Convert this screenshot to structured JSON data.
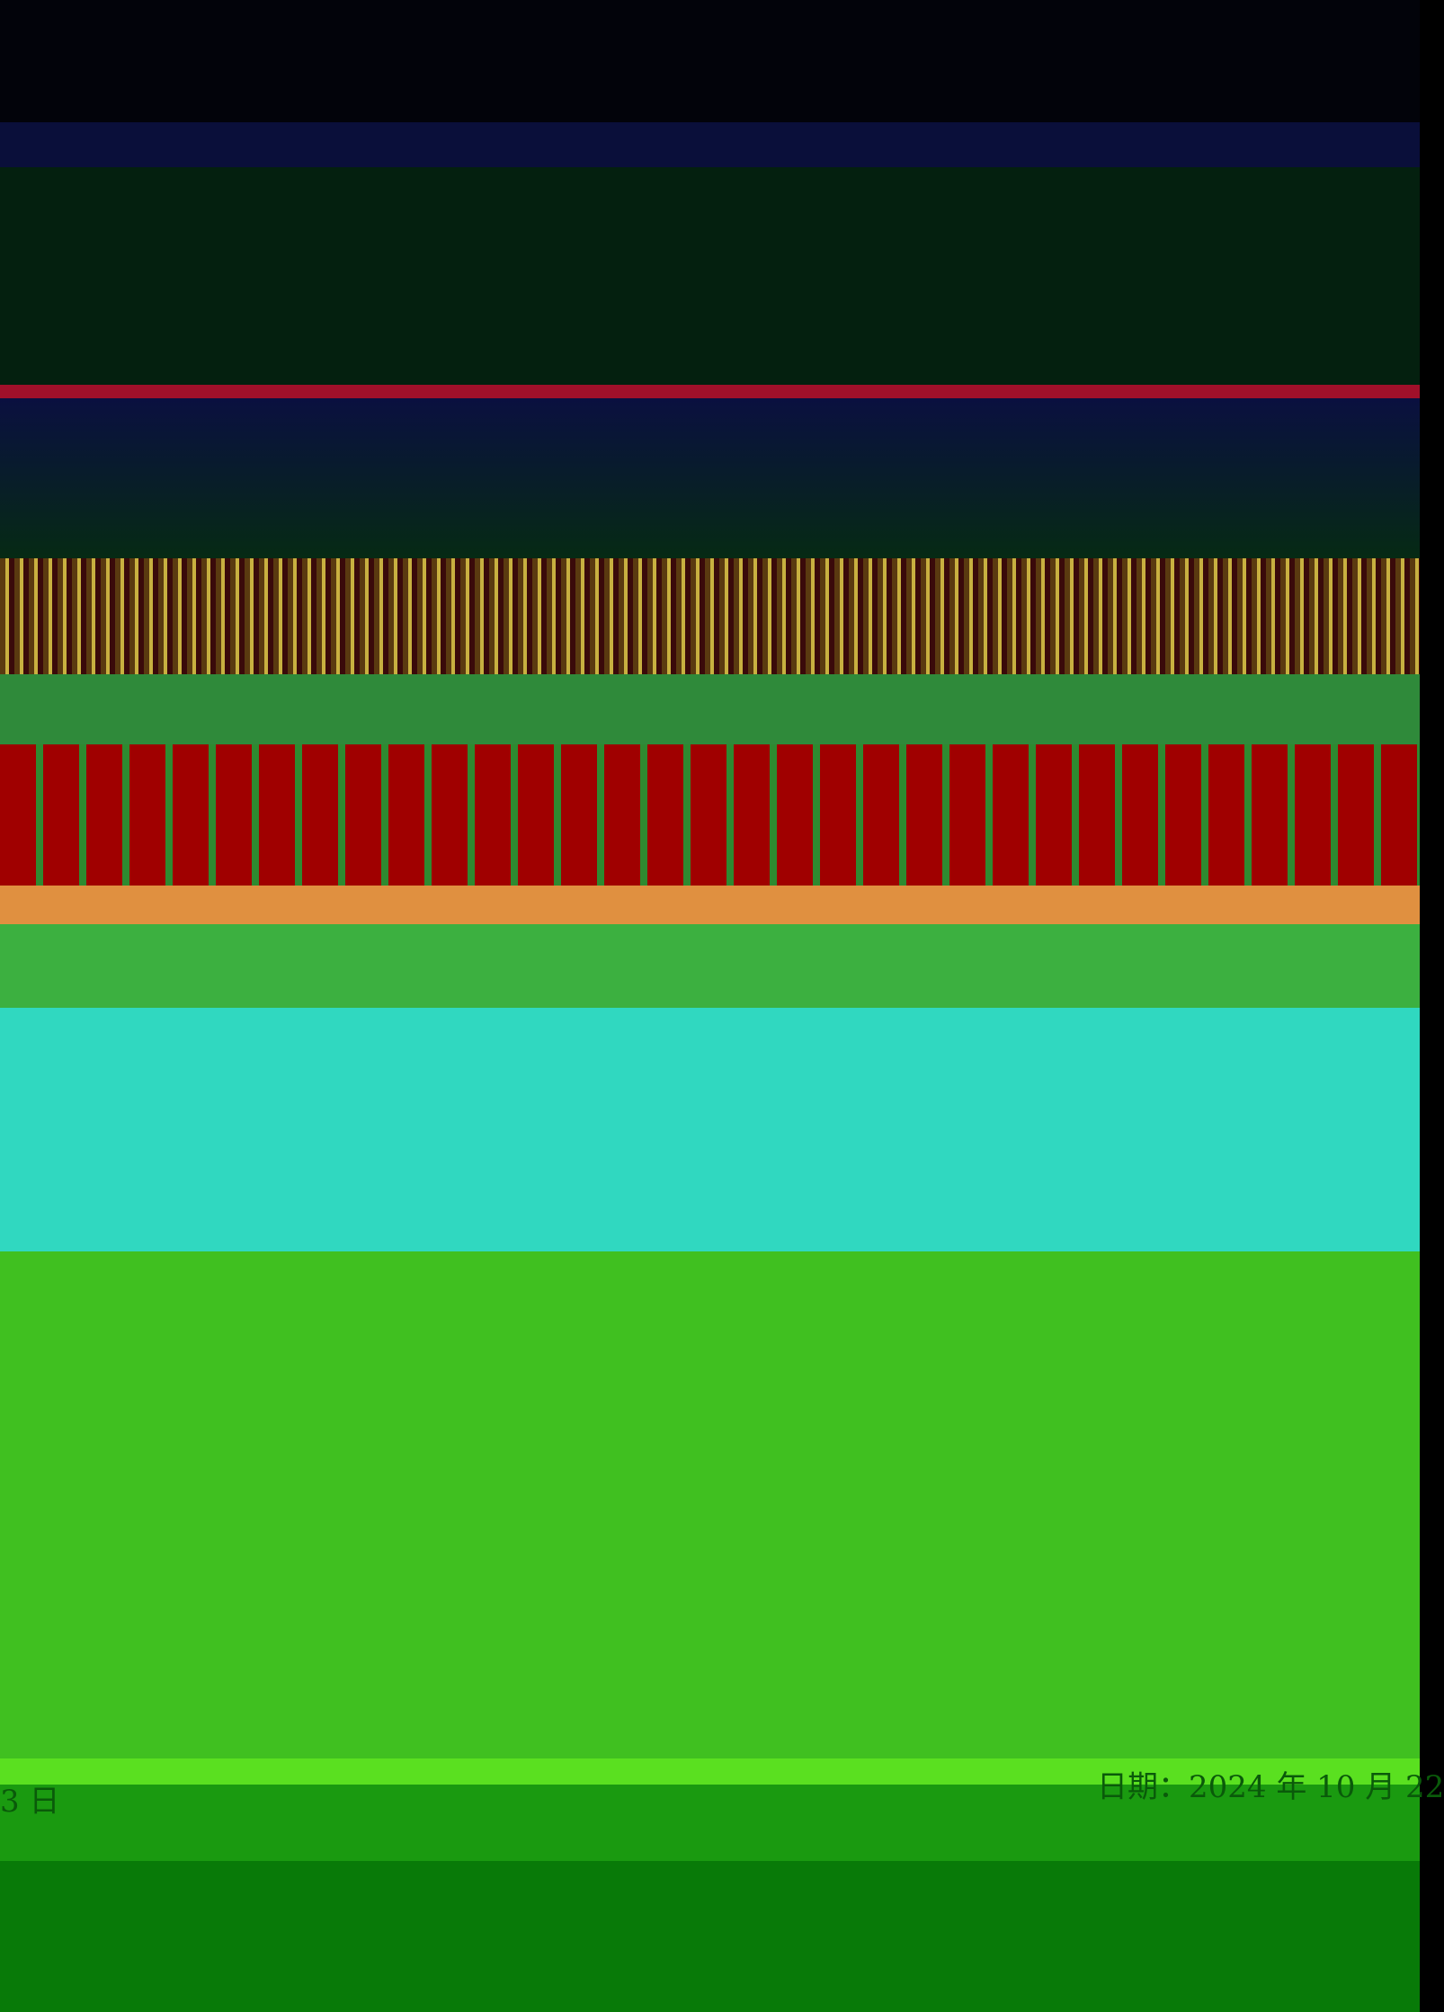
{
  "footer": {
    "date_right": "日期：2024 年 10 月 22",
    "date_left": "3 日"
  }
}
